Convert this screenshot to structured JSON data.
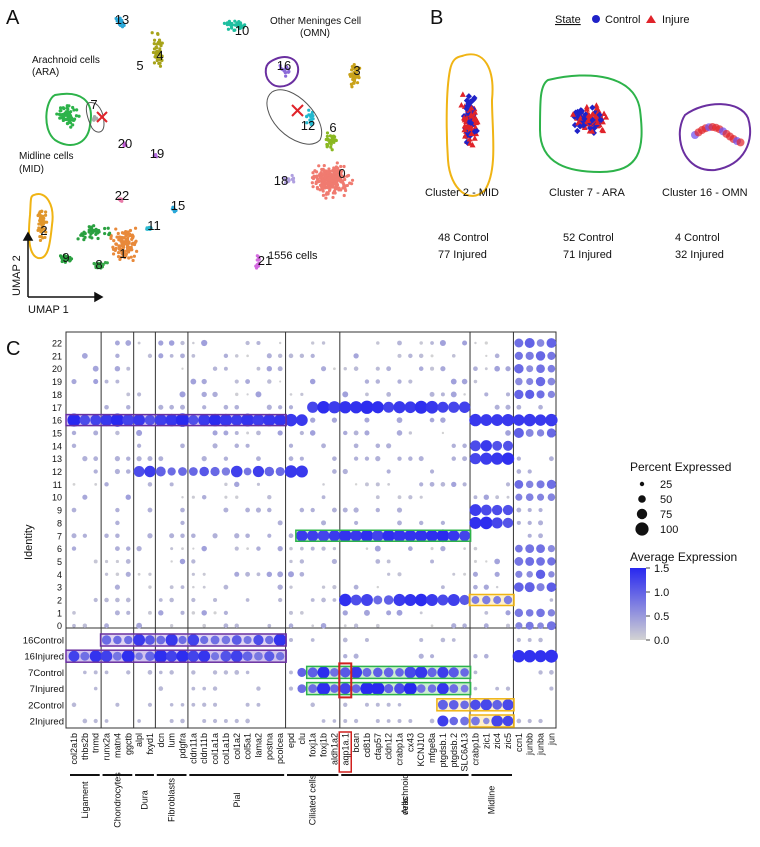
{
  "panels": {
    "a": "A",
    "b": "B",
    "c": "C"
  },
  "panel_a": {
    "annotations": {
      "other_meninges": "Other Meninges Cell",
      "omn": "(OMN)",
      "arachnoid": "Arachnoid cells",
      "ara": "(ARA)",
      "midline": "Midline cells",
      "mid": "(MID)",
      "cell_count": "1556 cells"
    },
    "axes": {
      "x": "UMAP 1",
      "y": "UMAP 2"
    },
    "cluster_labels": [
      "13",
      "10",
      "5",
      "4",
      "16",
      "3",
      "7",
      "12",
      "6",
      "20",
      "19",
      "22",
      "2",
      "15",
      "11",
      "9",
      "8",
      "1",
      "0",
      "18",
      "21"
    ]
  },
  "panel_b": {
    "legend_title": "State",
    "legend_items": [
      {
        "label": "Control",
        "color": "#1f22c8"
      },
      {
        "label": "Injure",
        "color": "#e0232a"
      }
    ],
    "clusters": [
      {
        "name": "Cluster 2 - MID",
        "control": "48 Control",
        "injured": "77 Injured"
      },
      {
        "name": "Cluster 7 - ARA",
        "control": "52 Control",
        "injured": "71 Injured"
      },
      {
        "name": "Cluster 16 - OMN",
        "control": "4 Control",
        "injured": "32 Injured"
      }
    ]
  },
  "panel_c": {
    "y_axis_title": "Identity",
    "identities": [
      "22",
      "21",
      "20",
      "19",
      "18",
      "17",
      "16",
      "15",
      "14",
      "13",
      "12",
      "11",
      "10",
      "9",
      "8",
      "7",
      "6",
      "5",
      "4",
      "3",
      "2",
      "1",
      "0"
    ],
    "conditions": [
      "16Control",
      "16Injured",
      "7Control",
      "7Injured",
      "2Control",
      "2Injured"
    ],
    "genes": [
      "col2a1b",
      "thbs2b",
      "tnmd",
      "runx2a",
      "matn4",
      "ggctb",
      "alpl",
      "fxyd1",
      "dcn",
      "lum",
      "pdgfra",
      "cldn11a",
      "cldn11b",
      "col1a1a",
      "col1a1b",
      "col1a2",
      "col5a1",
      "lama2",
      "postna",
      "pcolcea",
      "epd",
      "clu",
      "foxj1a",
      "foxj1b",
      "aldh1a2",
      "aqp1a.1",
      "bcan",
      "cd81b",
      "cfap57",
      "cldn12",
      "crabp1a",
      "cx43",
      "KCNJ10",
      "mfge8a",
      "ptgdsb.1",
      "ptgdsb.2",
      "SLC6A13",
      "crabp1b",
      "zic1",
      "zic4",
      "zic5",
      "ccn1",
      "junbb",
      "junba",
      "jun"
    ],
    "groups": [
      "Ligament",
      "Chondrocytes",
      "Dura",
      "Fibroblasts",
      "Pial",
      "Ciliated cells",
      "Arachnoid\ncells",
      "Midline"
    ],
    "legend": {
      "percent_title": "Percent Expressed",
      "percent_values": [
        "25",
        "50",
        "75",
        "100"
      ],
      "avg_title": "Average Expression",
      "avg_ticks": [
        "1.5",
        "1.0",
        "0.5",
        "0.0"
      ],
      "colors": {
        "low": "#d3d3d3",
        "high": "#2828f0"
      }
    }
  },
  "colors": {
    "mid_outline": "#f0b414",
    "ara_outline": "#2db34a",
    "omn_outline": "#6a2fa0",
    "cross": "#e0232a",
    "highlight_gene": "#d0201e"
  }
}
